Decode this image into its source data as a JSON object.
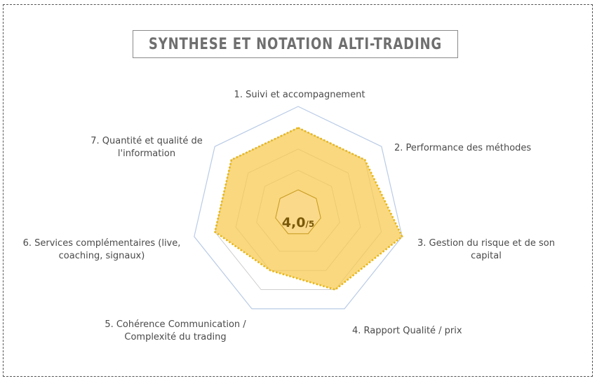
{
  "title": "SYNTHESE ET NOTATION ALTI-TRADING",
  "chart_data": {
    "type": "radar",
    "categories": [
      "1. Suivi et accompagnement",
      "2. Performance des méthodes",
      "3. Gestion du risque et de son capital",
      "4. Rapport Qualité / prix",
      "5. Cohérence Communication / Complexité du trading",
      "6. Services complémentaires (live, coaching, signaux)",
      "7. Quantité et qualité de l'information"
    ],
    "category_lines": [
      [
        "1. Suivi et accompagnement"
      ],
      [
        "2. Performance des méthodes"
      ],
      [
        "3. Gestion du risque et de son",
        "capital"
      ],
      [
        "4. Rapport Qualité / prix"
      ],
      [
        "5. Cohérence Communication /",
        "Complexité du trading"
      ],
      [
        "6. Services complémentaires (live,",
        "coaching, signaux)"
      ],
      [
        "7. Quantité et qualité de",
        "l'information"
      ]
    ],
    "values": [
      4,
      4,
      5,
      4,
      3,
      4,
      4
    ],
    "rmax": 5,
    "grid_levels": [
      1,
      2,
      3,
      4,
      5
    ],
    "score": {
      "value": "4,0",
      "scale": "/5"
    },
    "colors": {
      "fill": "#f7c94e",
      "fill_opacity": 0.72,
      "outline": "#e8b616",
      "grid": "#c8c8c8",
      "outer_grid": "#b9cbe6",
      "center_fill": "#fbd98a",
      "center_stroke": "#c79a1e"
    }
  }
}
